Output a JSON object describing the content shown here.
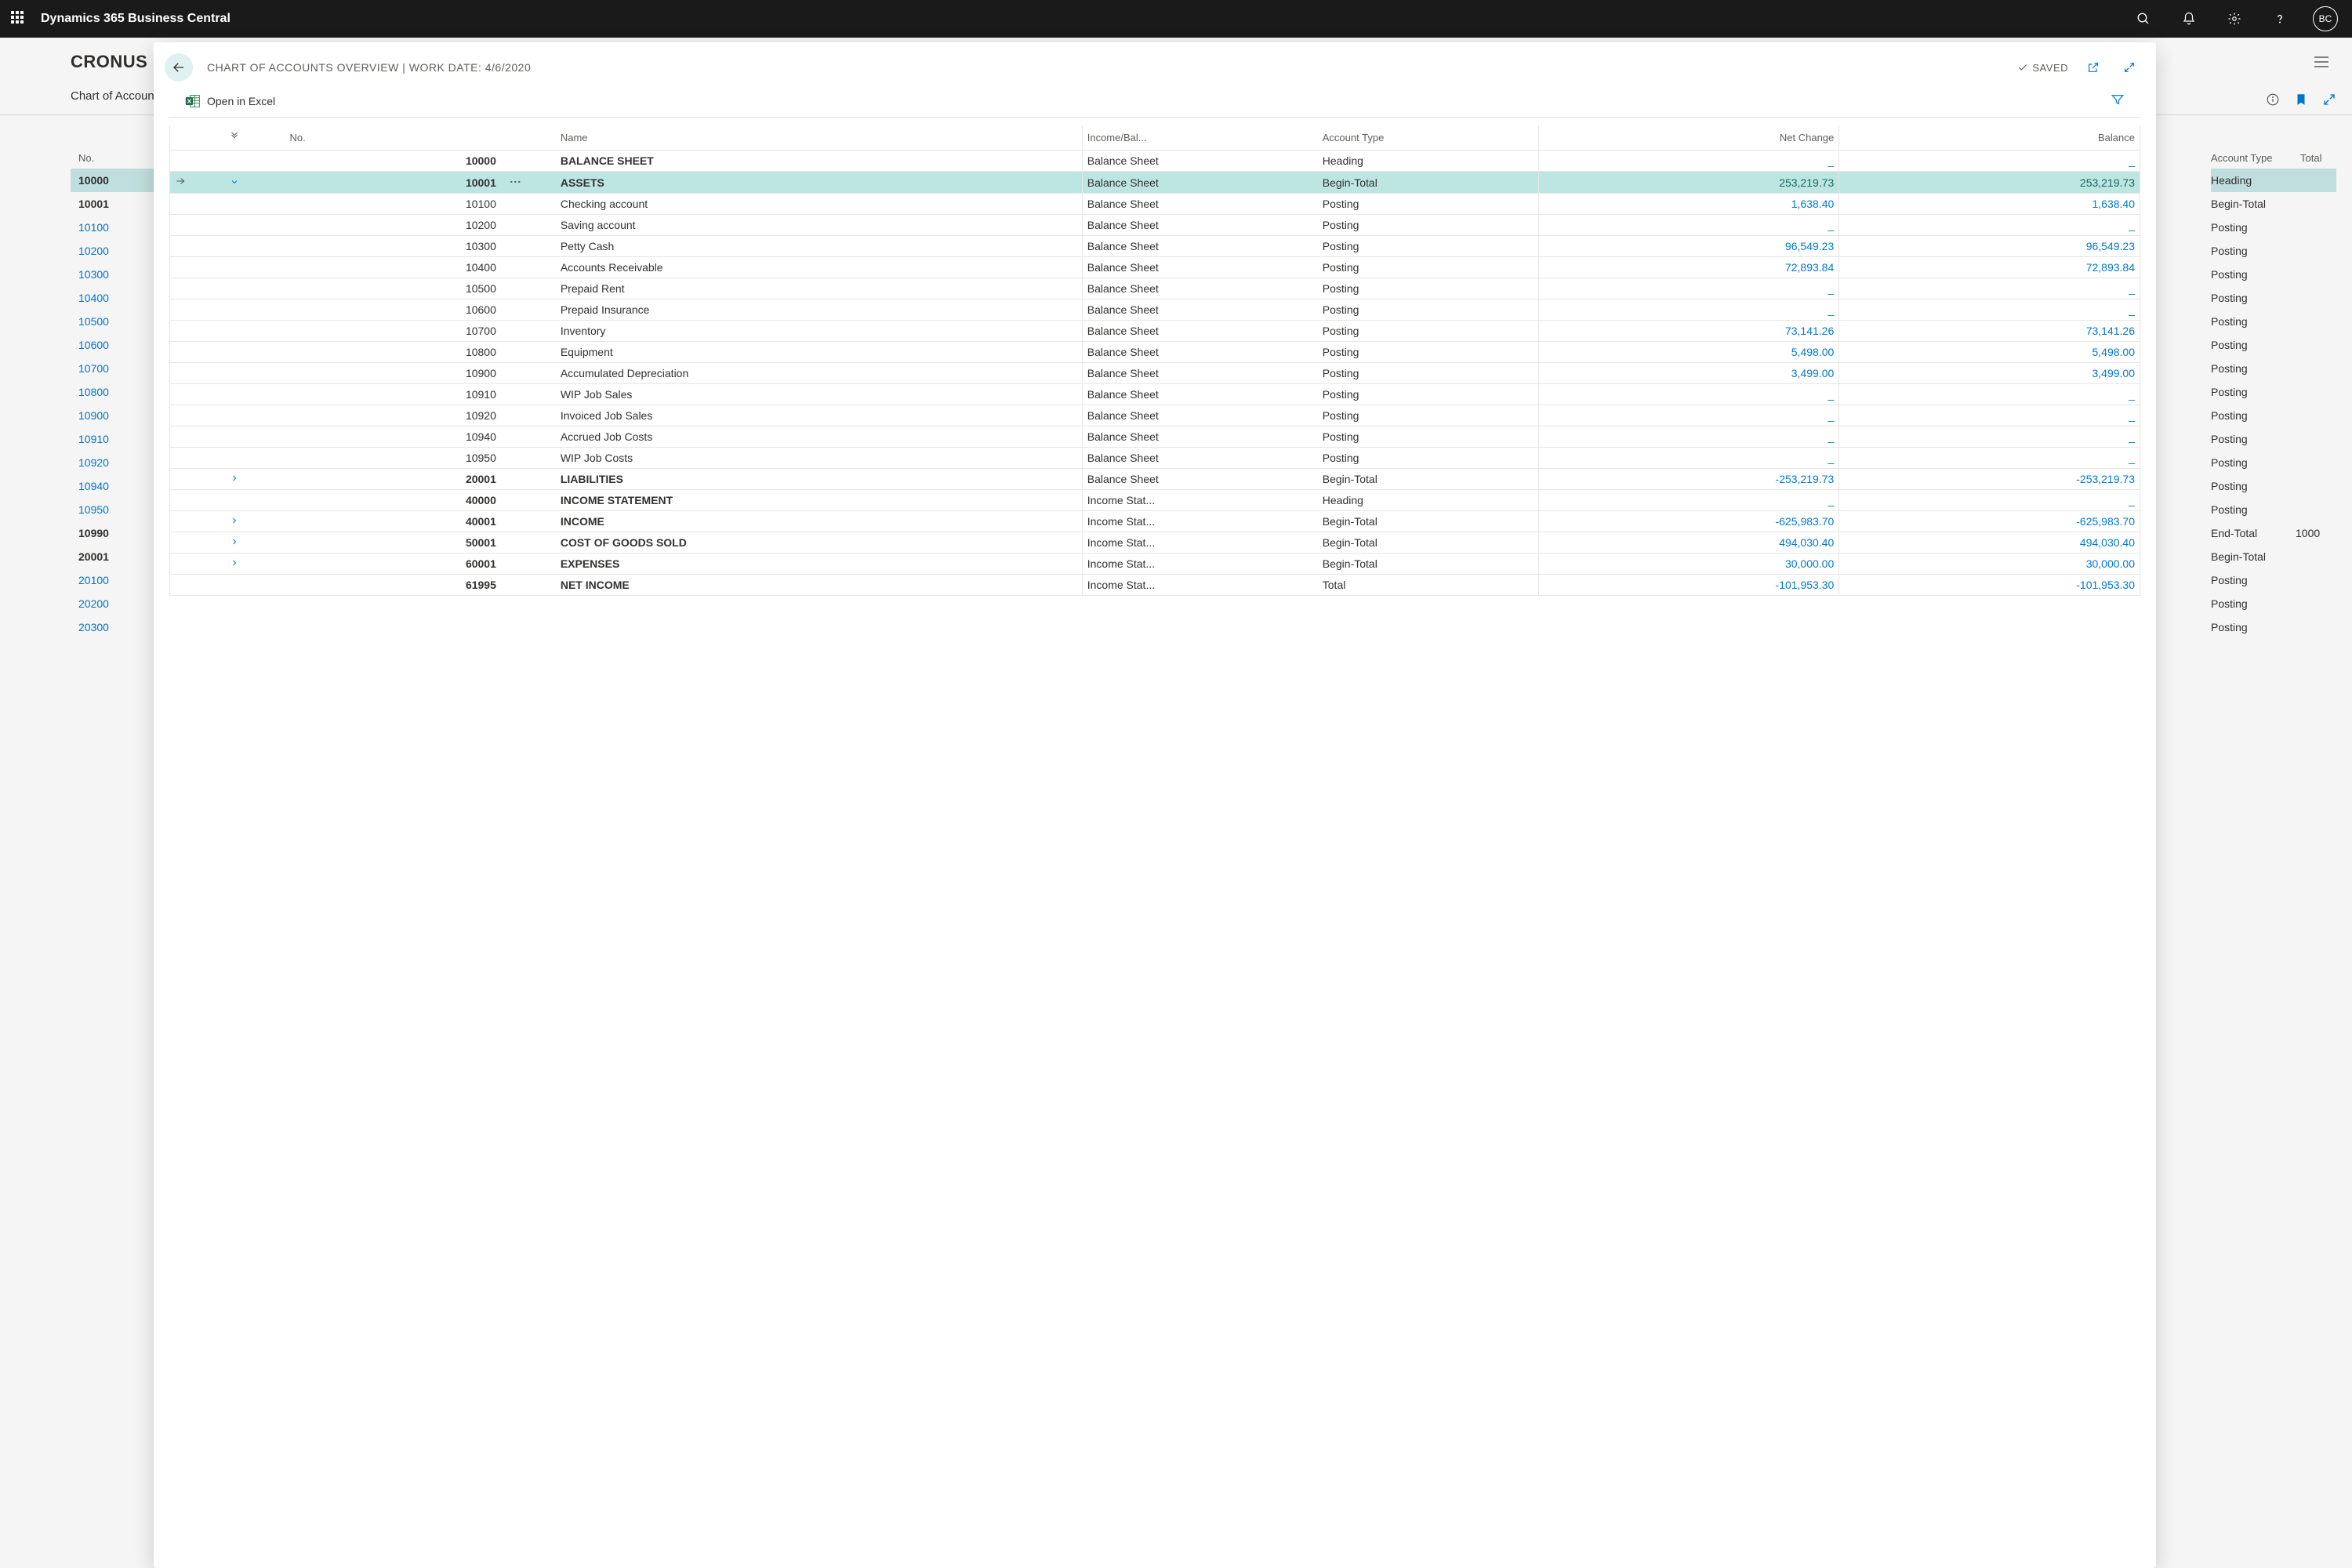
{
  "topbar": {
    "product": "Dynamics 365 Business Central",
    "avatar": "BC"
  },
  "page_under": {
    "company": "CRONUS US",
    "page_title": "Chart of Accounts"
  },
  "bg_left": {
    "header": "No.",
    "rows": [
      {
        "no": "10000",
        "style": "sel"
      },
      {
        "no": "10001",
        "style": "bold"
      },
      {
        "no": "10100",
        "style": "link"
      },
      {
        "no": "10200",
        "style": "link"
      },
      {
        "no": "10300",
        "style": "link"
      },
      {
        "no": "10400",
        "style": "link"
      },
      {
        "no": "10500",
        "style": "link"
      },
      {
        "no": "10600",
        "style": "link"
      },
      {
        "no": "10700",
        "style": "link"
      },
      {
        "no": "10800",
        "style": "link"
      },
      {
        "no": "10900",
        "style": "link"
      },
      {
        "no": "10910",
        "style": "link"
      },
      {
        "no": "10920",
        "style": "link"
      },
      {
        "no": "10940",
        "style": "link"
      },
      {
        "no": "10950",
        "style": "link"
      },
      {
        "no": "10990",
        "style": "bold"
      },
      {
        "no": "20001",
        "style": "bold"
      },
      {
        "no": "20100",
        "style": "link"
      },
      {
        "no": "20200",
        "style": "link"
      },
      {
        "no": "20300",
        "style": "link"
      }
    ]
  },
  "bg_right": {
    "h1": "Account Type",
    "h2": "Total",
    "rows": [
      {
        "t": "Heading",
        "sel": true
      },
      {
        "t": "Begin-Total"
      },
      {
        "t": "Posting"
      },
      {
        "t": "Posting"
      },
      {
        "t": "Posting"
      },
      {
        "t": "Posting"
      },
      {
        "t": "Posting"
      },
      {
        "t": "Posting"
      },
      {
        "t": "Posting"
      },
      {
        "t": "Posting"
      },
      {
        "t": "Posting"
      },
      {
        "t": "Posting"
      },
      {
        "t": "Posting"
      },
      {
        "t": "Posting"
      },
      {
        "t": "Posting"
      },
      {
        "t": "End-Total",
        "extra": "1000"
      },
      {
        "t": "Begin-Total"
      },
      {
        "t": "Posting"
      },
      {
        "t": "Posting"
      },
      {
        "t": "Posting"
      }
    ]
  },
  "modal": {
    "title": "CHART OF ACCOUNTS OVERVIEW | WORK DATE: 4/6/2020",
    "saved_label": "SAVED",
    "excel_label": "Open in Excel"
  },
  "columns": {
    "no": "No.",
    "name": "Name",
    "income_balance": "Income/Bal...",
    "account_type": "Account Type",
    "net_change": "Net Change",
    "balance": "Balance"
  },
  "rows": [
    {
      "no": "10000",
      "name": "BALANCE SHEET",
      "ib": "Balance Sheet",
      "type": "Heading",
      "net": "_",
      "bal": "_",
      "bold": true
    },
    {
      "no": "10001",
      "name": "ASSETS",
      "ib": "Balance Sheet",
      "type": "Begin-Total",
      "net": "253,219.73",
      "bal": "253,219.73",
      "bold": true,
      "selected": true,
      "chev": "down"
    },
    {
      "no": "10100",
      "name": "Checking account",
      "ib": "Balance Sheet",
      "type": "Posting",
      "net": "1,638.40",
      "bal": "1,638.40"
    },
    {
      "no": "10200",
      "name": "Saving account",
      "ib": "Balance Sheet",
      "type": "Posting",
      "net": "_",
      "bal": "_"
    },
    {
      "no": "10300",
      "name": "Petty Cash",
      "ib": "Balance Sheet",
      "type": "Posting",
      "net": "96,549.23",
      "bal": "96,549.23"
    },
    {
      "no": "10400",
      "name": "Accounts Receivable",
      "ib": "Balance Sheet",
      "type": "Posting",
      "net": "72,893.84",
      "bal": "72,893.84"
    },
    {
      "no": "10500",
      "name": "Prepaid Rent",
      "ib": "Balance Sheet",
      "type": "Posting",
      "net": "_",
      "bal": "_"
    },
    {
      "no": "10600",
      "name": "Prepaid Insurance",
      "ib": "Balance Sheet",
      "type": "Posting",
      "net": "_",
      "bal": "_"
    },
    {
      "no": "10700",
      "name": "Inventory",
      "ib": "Balance Sheet",
      "type": "Posting",
      "net": "73,141.26",
      "bal": "73,141.26"
    },
    {
      "no": "10800",
      "name": "Equipment",
      "ib": "Balance Sheet",
      "type": "Posting",
      "net": "5,498.00",
      "bal": "5,498.00"
    },
    {
      "no": "10900",
      "name": "Accumulated Depreciation",
      "ib": "Balance Sheet",
      "type": "Posting",
      "net": "3,499.00",
      "bal": "3,499.00"
    },
    {
      "no": "10910",
      "name": "WIP Job Sales",
      "ib": "Balance Sheet",
      "type": "Posting",
      "net": "_",
      "bal": "_"
    },
    {
      "no": "10920",
      "name": "Invoiced Job Sales",
      "ib": "Balance Sheet",
      "type": "Posting",
      "net": "_",
      "bal": "_"
    },
    {
      "no": "10940",
      "name": "Accrued Job Costs",
      "ib": "Balance Sheet",
      "type": "Posting",
      "net": "_",
      "bal": "_"
    },
    {
      "no": "10950",
      "name": "WIP Job Costs",
      "ib": "Balance Sheet",
      "type": "Posting",
      "net": "_",
      "bal": "_"
    },
    {
      "no": "20001",
      "name": "LIABILITIES",
      "ib": "Balance Sheet",
      "type": "Begin-Total",
      "net": "-253,219.73",
      "bal": "-253,219.73",
      "bold": true,
      "chev": "right"
    },
    {
      "no": "40000",
      "name": "INCOME STATEMENT",
      "ib": "Income Stat...",
      "type": "Heading",
      "net": "_",
      "bal": "_",
      "bold": true
    },
    {
      "no": "40001",
      "name": "INCOME",
      "ib": "Income Stat...",
      "type": "Begin-Total",
      "net": "-625,983.70",
      "bal": "-625,983.70",
      "bold": true,
      "chev": "right"
    },
    {
      "no": "50001",
      "name": "COST OF GOODS SOLD",
      "ib": "Income Stat...",
      "type": "Begin-Total",
      "net": "494,030.40",
      "bal": "494,030.40",
      "bold": true,
      "chev": "right"
    },
    {
      "no": "60001",
      "name": "EXPENSES",
      "ib": "Income Stat...",
      "type": "Begin-Total",
      "net": "30,000.00",
      "bal": "30,000.00",
      "bold": true,
      "chev": "right"
    },
    {
      "no": "61995",
      "name": "NET INCOME",
      "ib": "Income Stat...",
      "type": "Total",
      "net": "-101,953.30",
      "bal": "-101,953.30",
      "bold": true
    }
  ]
}
